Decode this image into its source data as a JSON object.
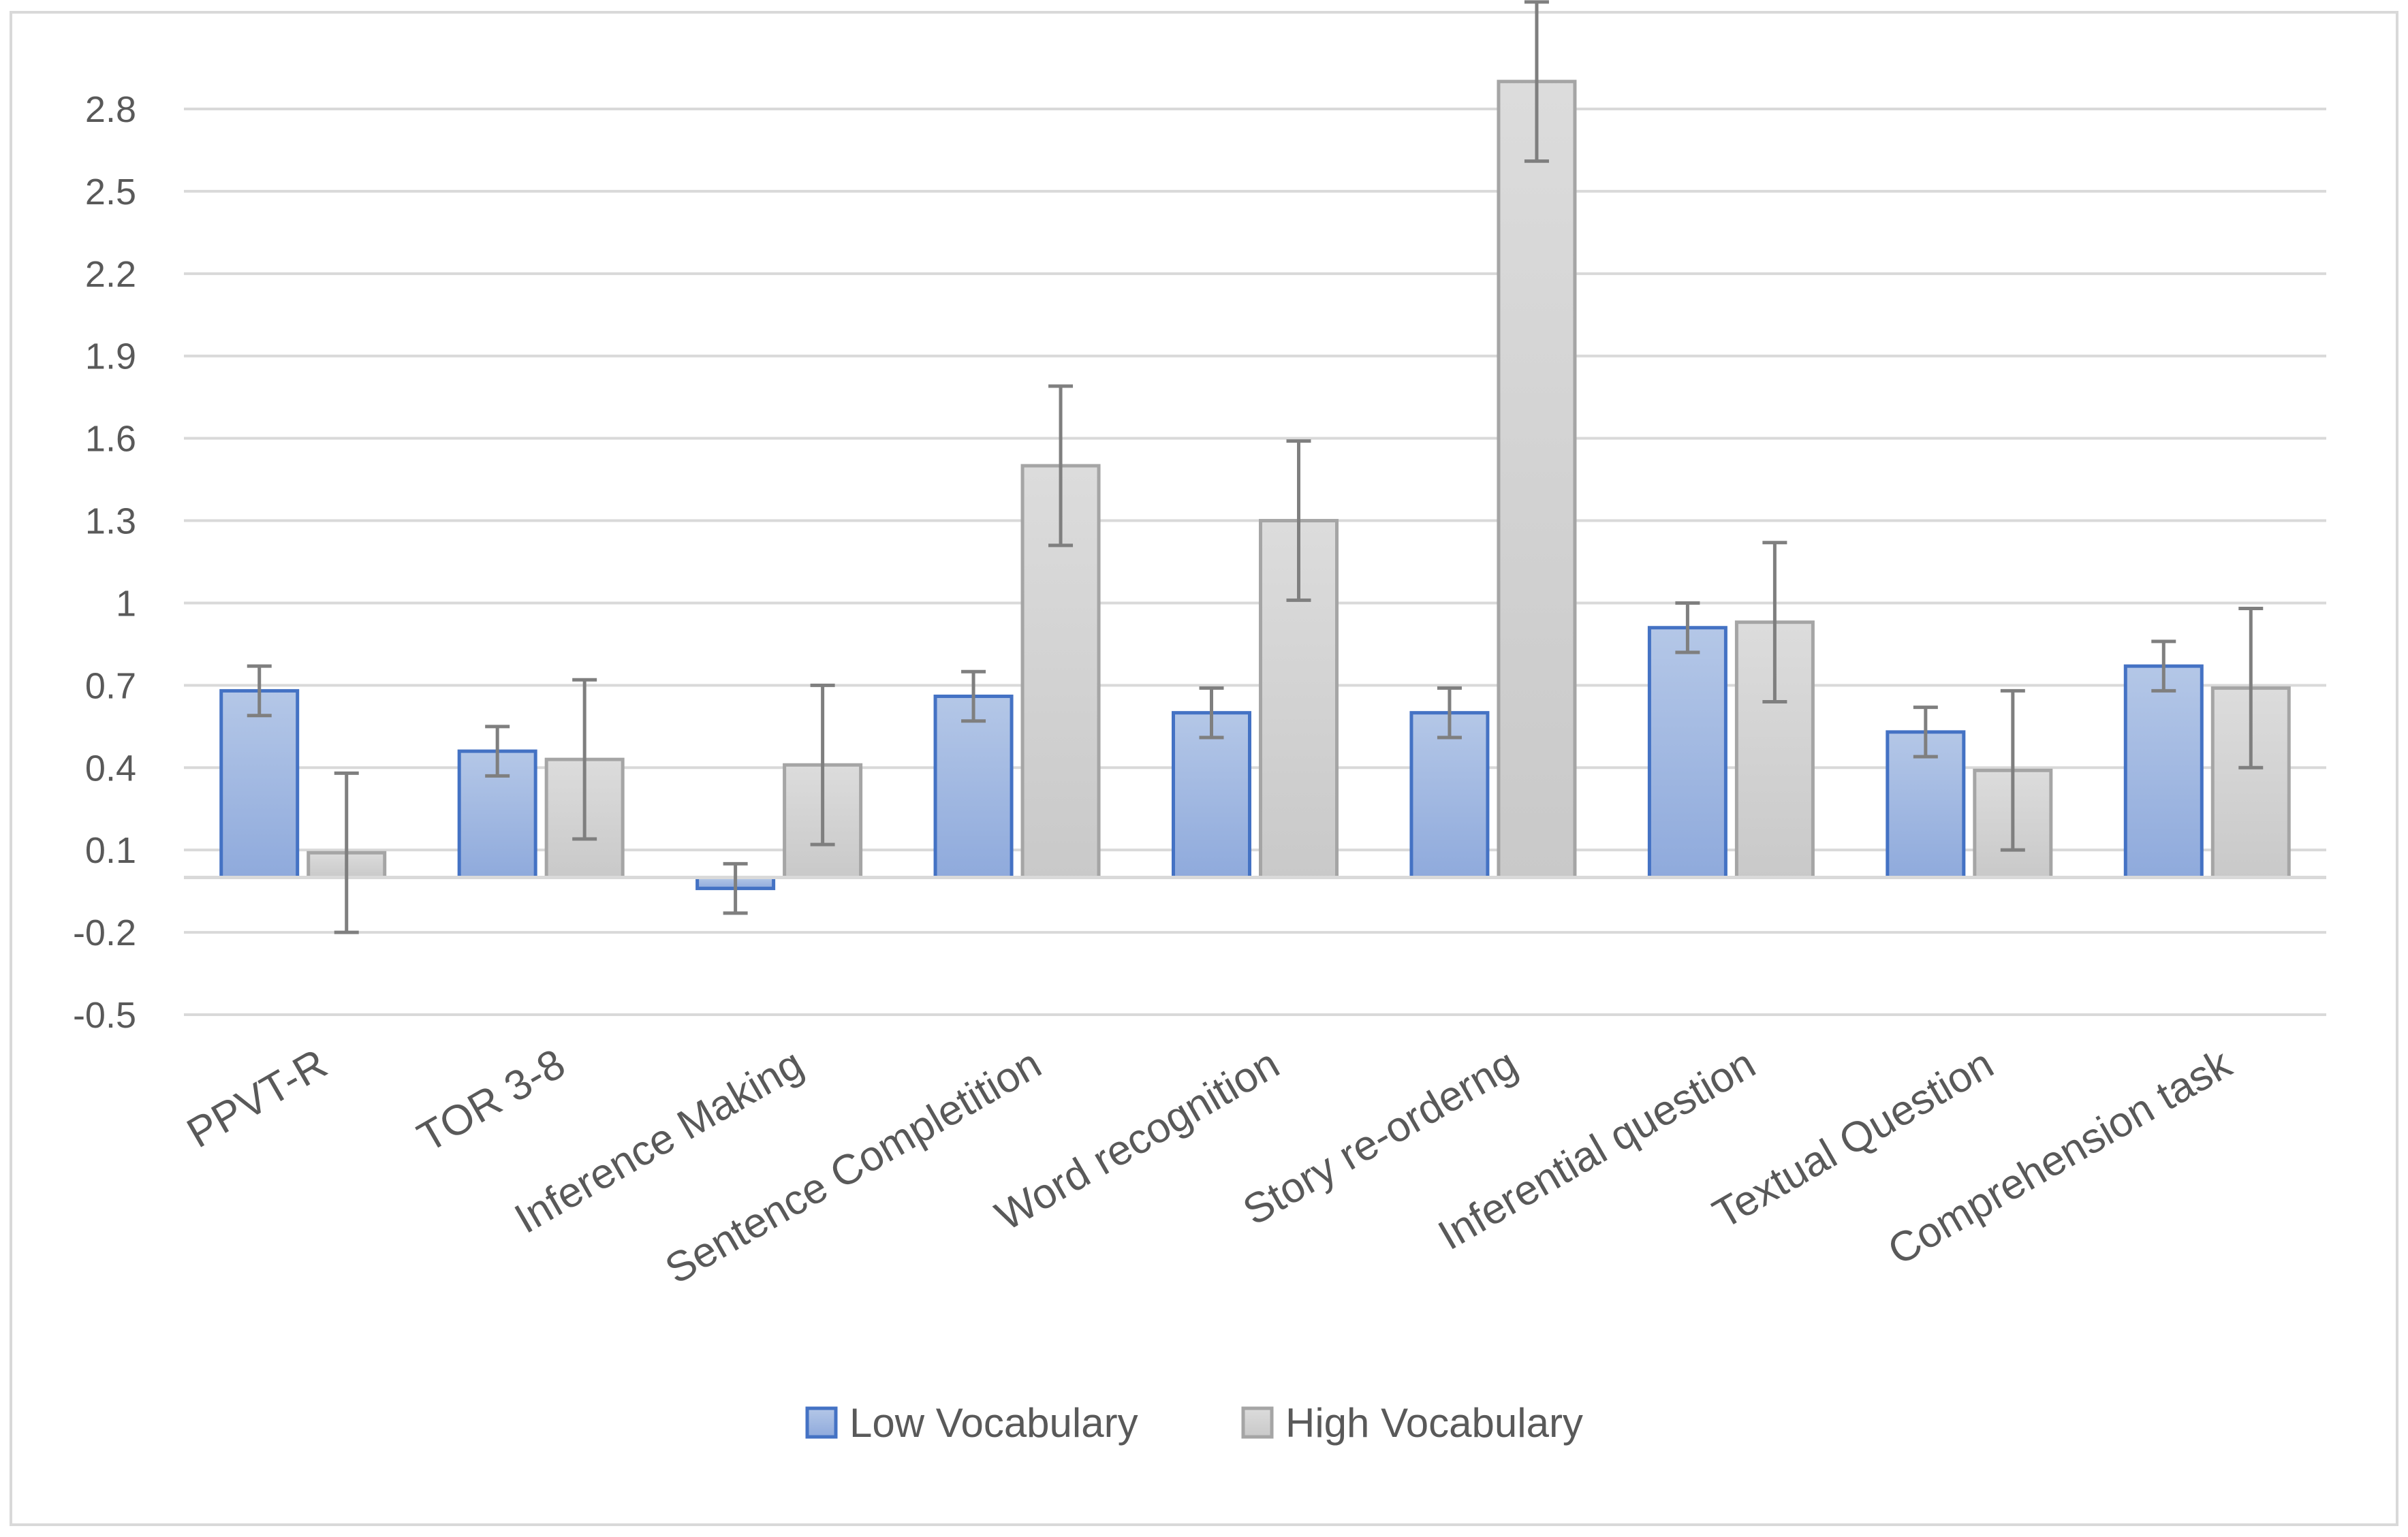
{
  "chart_data": {
    "type": "bar",
    "title": "",
    "xlabel": "",
    "ylabel": "",
    "ylim": [
      -0.5,
      2.9
    ],
    "yticks": [
      -0.5,
      -0.2,
      0.1,
      0.4,
      0.7,
      1,
      1.3,
      1.6,
      1.9,
      2.2,
      2.5,
      2.8
    ],
    "ytick_labels": [
      "-0.5",
      "-0.2",
      "0.1",
      "0.4",
      "0.7",
      "1",
      "1.3",
      "1.6",
      "1.9",
      "2.2",
      "2.5",
      "2.8"
    ],
    "grid": true,
    "legend_position": "bottom-center",
    "categories": [
      "PPVT-R",
      "TOR 3-8",
      "Inference Making",
      "Sentence Completition",
      "Word recognition",
      "Story re-orderng",
      "Inferential question",
      "Textual Question",
      "Comprehension task"
    ],
    "series": [
      {
        "name": "Low Vocabulary",
        "color": "#8FAADC",
        "border": "#4472C4",
        "values": [
          0.68,
          0.46,
          -0.04,
          0.66,
          0.6,
          0.6,
          0.91,
          0.53,
          0.77
        ],
        "errors": [
          0.09,
          0.09,
          0.09,
          0.09,
          0.09,
          0.09,
          0.09,
          0.09,
          0.09
        ]
      },
      {
        "name": "High Vocabulary",
        "color": "#C9C9C9",
        "border": "#A5A5A5",
        "values": [
          0.09,
          0.43,
          0.41,
          1.5,
          1.3,
          2.9,
          0.93,
          0.39,
          0.69
        ],
        "errors": [
          0.29,
          0.29,
          0.29,
          0.29,
          0.29,
          0.29,
          0.29,
          0.29,
          0.29
        ]
      }
    ]
  }
}
